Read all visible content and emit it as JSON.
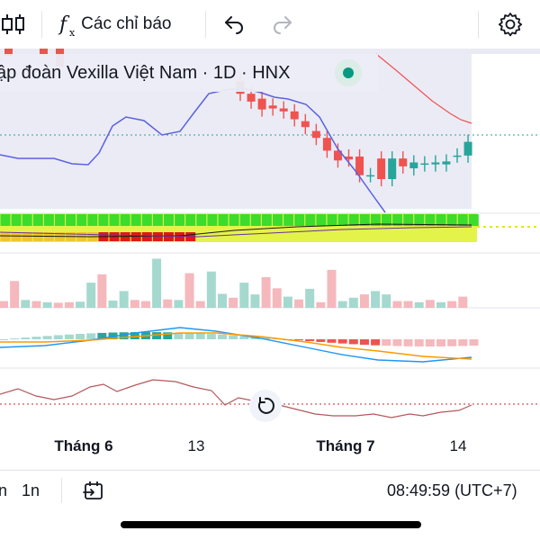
{
  "toolbar": {
    "indicators_label": "Các chỉ báo",
    "icons": [
      "candles-icon",
      "fx-icon",
      "undo-icon",
      "redo-icon",
      "gear-icon"
    ]
  },
  "legend": {
    "title": "ập đoàn Vexilla Việt Nam · 1D · HNX"
  },
  "x_axis": {
    "labels": [
      "Tháng 6",
      "13",
      "Tháng 7",
      "14"
    ]
  },
  "bottombar": {
    "range_1": "n",
    "range_2": "1n",
    "time": "08:49:59 (UTC+7)"
  },
  "colors": {
    "up": "#26a69a",
    "down": "#ef5350",
    "upLight": "#a5d9cf",
    "downLight": "#f5b8bc",
    "bb": "#5b61e0",
    "ma": "#ef5350"
  },
  "chart_data": {
    "type": "candlestick",
    "x_labels": [
      "Tháng 6",
      "13",
      "Tháng 7",
      "14"
    ],
    "candles_visible": [
      {
        "o": 197.5,
        "c": 191.0
      },
      {
        "o": 191.0,
        "c": 187.0
      },
      {
        "o": 188.5,
        "c": 183.0
      },
      {
        "o": 185.0,
        "c": 183.5
      },
      {
        "o": 183.5,
        "c": 182.0
      },
      {
        "o": 182.0,
        "c": 178.0
      },
      {
        "o": 177.0,
        "c": 174.0
      },
      {
        "o": 172.0,
        "c": 168.5
      },
      {
        "o": 168.5,
        "c": 162.0
      },
      {
        "o": 162.0,
        "c": 157.0
      },
      {
        "o": 159.0,
        "c": 157.5
      },
      {
        "o": 159.0,
        "c": 149.5
      },
      {
        "o": 149.5,
        "c": 149.5
      },
      {
        "o": 158.0,
        "c": 147.5
      },
      {
        "o": 147.5,
        "c": 158.0
      },
      {
        "o": 158.0,
        "c": 154.0
      },
      {
        "o": 153.0,
        "c": 156.0
      },
      {
        "o": 155.0,
        "c": 155.5
      },
      {
        "o": 155.0,
        "c": 156.0
      },
      {
        "o": 155.0,
        "c": 156.5
      },
      {
        "o": 159.5,
        "c": 159.5
      },
      {
        "o": 159.5,
        "c": 166.5
      }
    ],
    "volume": [
      0.12,
      0.48,
      0.14,
      0.12,
      0.1,
      0.09,
      0.1,
      0.11,
      0.45,
      0.6,
      0.13,
      0.3,
      0.14,
      0.12,
      0.88,
      0.15,
      0.14,
      0.62,
      0.12,
      0.65,
      0.25,
      0.18,
      0.45,
      0.24,
      0.55,
      0.35,
      0.2,
      0.15,
      0.34,
      0.1,
      0.68,
      0.12,
      0.18,
      0.24,
      0.3,
      0.24,
      0.12,
      0.12,
      0.1,
      0.14,
      0.1,
      0.12,
      0.2
    ]
  }
}
